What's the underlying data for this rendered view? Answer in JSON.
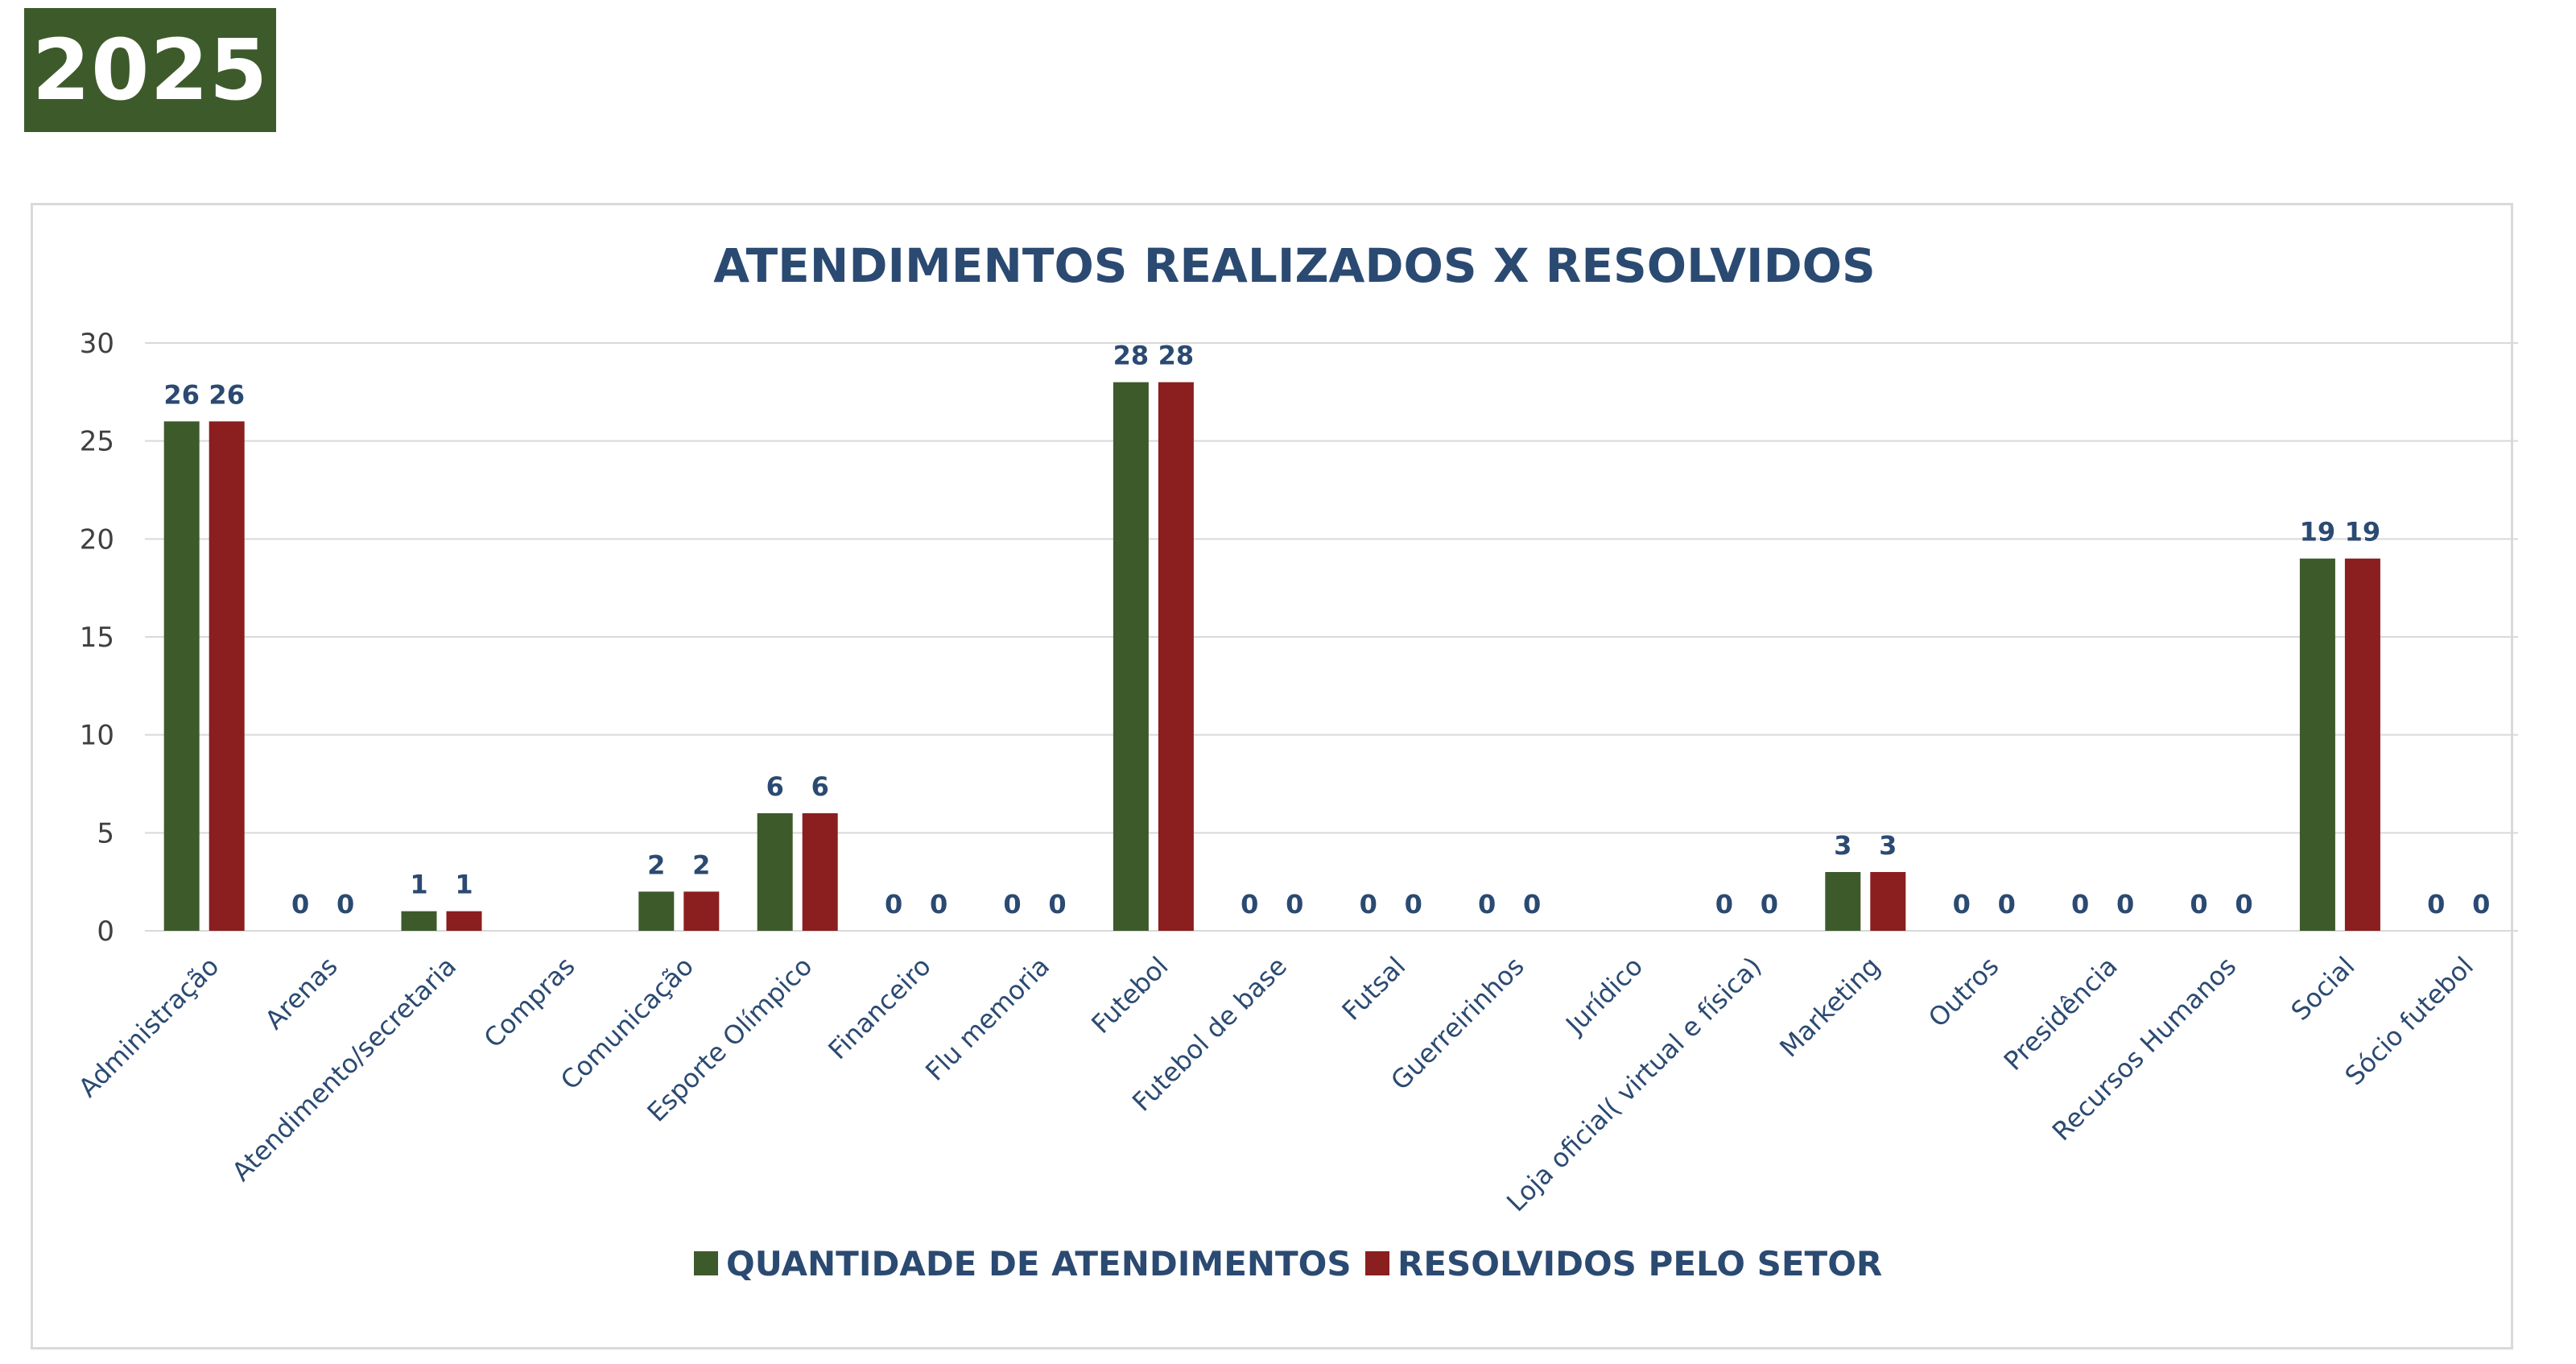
{
  "badge": {
    "label": "2025",
    "color": "#3d5a2b"
  },
  "chart_data": {
    "type": "bar",
    "title": "ATENDIMENTOS REALIZADOS X RESOLVIDOS",
    "xlabel": "",
    "ylabel": "",
    "ylim": [
      0,
      30
    ],
    "yticks": [
      0,
      5,
      10,
      15,
      20,
      25,
      30
    ],
    "grid": true,
    "legend_position": "bottom",
    "categories": [
      "Administração",
      "Arenas",
      "Atendimento/secretaria",
      "Compras",
      "Comunicação",
      "Esporte Olímpico",
      "Financeiro",
      "Flu memoria",
      "Futebol",
      "Futebol de base",
      "Futsal",
      "Guerreirinhos",
      "Jurídico",
      "Loja oficial( virtual e física)",
      "Marketing",
      "Outros",
      "Presidência",
      "Recursos Humanos",
      "Social",
      "Sócio futebol"
    ],
    "series": [
      {
        "name": "QUANTIDADE DE ATENDIMENTOS",
        "color": "#3d5a2b",
        "values": [
          26,
          0,
          1,
          null,
          2,
          6,
          0,
          0,
          28,
          0,
          0,
          0,
          null,
          0,
          3,
          0,
          0,
          0,
          19,
          0
        ]
      },
      {
        "name": "RESOLVIDOS PELO SETOR",
        "color": "#8b1e1e",
        "values": [
          26,
          0,
          1,
          null,
          2,
          6,
          0,
          0,
          28,
          0,
          0,
          0,
          null,
          0,
          3,
          0,
          0,
          0,
          19,
          0
        ]
      }
    ]
  }
}
